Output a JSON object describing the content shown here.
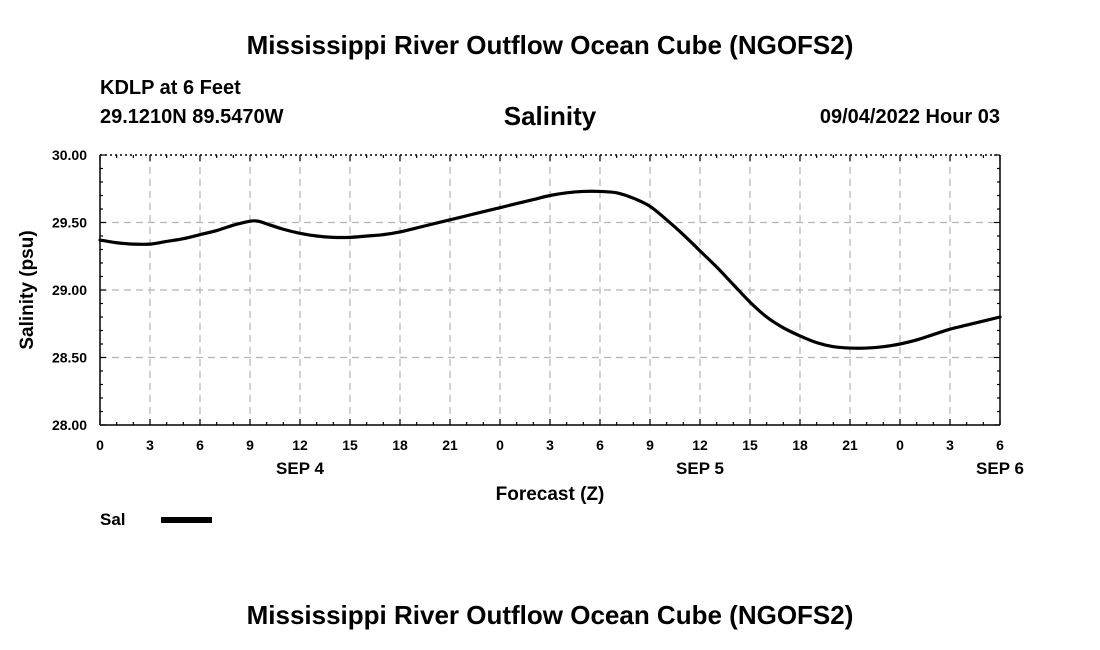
{
  "header": {
    "title": "Mississippi River Outflow Ocean Cube (NGOFS2)",
    "station": "KDLP at 6 Feet",
    "coordinates": "29.1210N  89.5470W",
    "subtitle": "Salinity",
    "datetime": "09/04/2022 Hour 03"
  },
  "footer": {
    "title": "Mississippi River Outflow Ocean Cube (NGOFS2)"
  },
  "legend": {
    "label": "Sal",
    "color": "#000000"
  },
  "chart_data": {
    "type": "line",
    "title": "Salinity",
    "xlabel": "Forecast (Z)",
    "ylabel": "Salinity (psu)",
    "xlim": [
      0,
      54
    ],
    "ylim": [
      28.0,
      30.0
    ],
    "x_ticks": [
      0,
      3,
      6,
      9,
      12,
      15,
      18,
      21,
      24,
      27,
      30,
      33,
      36,
      39,
      42,
      45,
      48,
      51,
      54
    ],
    "x_tick_labels": [
      "0",
      "3",
      "6",
      "9",
      "12",
      "15",
      "18",
      "21",
      "0",
      "3",
      "6",
      "9",
      "12",
      "15",
      "18",
      "21",
      "0",
      "3",
      "6"
    ],
    "y_ticks": [
      28.0,
      28.5,
      29.0,
      29.5,
      30.0
    ],
    "y_tick_labels": [
      "28.00",
      "28.50",
      "29.00",
      "29.50",
      "30.00"
    ],
    "day_labels": [
      {
        "x": 12,
        "label": "SEP 4"
      },
      {
        "x": 36,
        "label": "SEP 5"
      },
      {
        "x": 54,
        "label": "SEP 6"
      }
    ],
    "grid": true,
    "series": [
      {
        "name": "Sal",
        "color": "#000000",
        "x": [
          0,
          1,
          2,
          3,
          4,
          5,
          6,
          7,
          8,
          9,
          9.5,
          10,
          11,
          12,
          13,
          14,
          15,
          16,
          17,
          18,
          19,
          20,
          21,
          22,
          23,
          24,
          25,
          26,
          27,
          28,
          29,
          30,
          31,
          32,
          33,
          34,
          35,
          36,
          37,
          38,
          39,
          40,
          41,
          42,
          43,
          44,
          45,
          46,
          47,
          48,
          49,
          50,
          51,
          52,
          53,
          54
        ],
        "values": [
          29.37,
          29.35,
          29.34,
          29.34,
          29.36,
          29.38,
          29.41,
          29.44,
          29.48,
          29.51,
          29.51,
          29.49,
          29.45,
          29.42,
          29.4,
          29.39,
          29.39,
          29.4,
          29.41,
          29.43,
          29.46,
          29.49,
          29.52,
          29.55,
          29.58,
          29.61,
          29.64,
          29.67,
          29.7,
          29.72,
          29.73,
          29.73,
          29.72,
          29.68,
          29.62,
          29.52,
          29.41,
          29.29,
          29.17,
          29.04,
          28.91,
          28.8,
          28.72,
          28.66,
          28.61,
          28.58,
          28.57,
          28.57,
          28.58,
          28.6,
          28.63,
          28.67,
          28.71,
          28.74,
          28.77,
          28.8
        ]
      }
    ]
  }
}
